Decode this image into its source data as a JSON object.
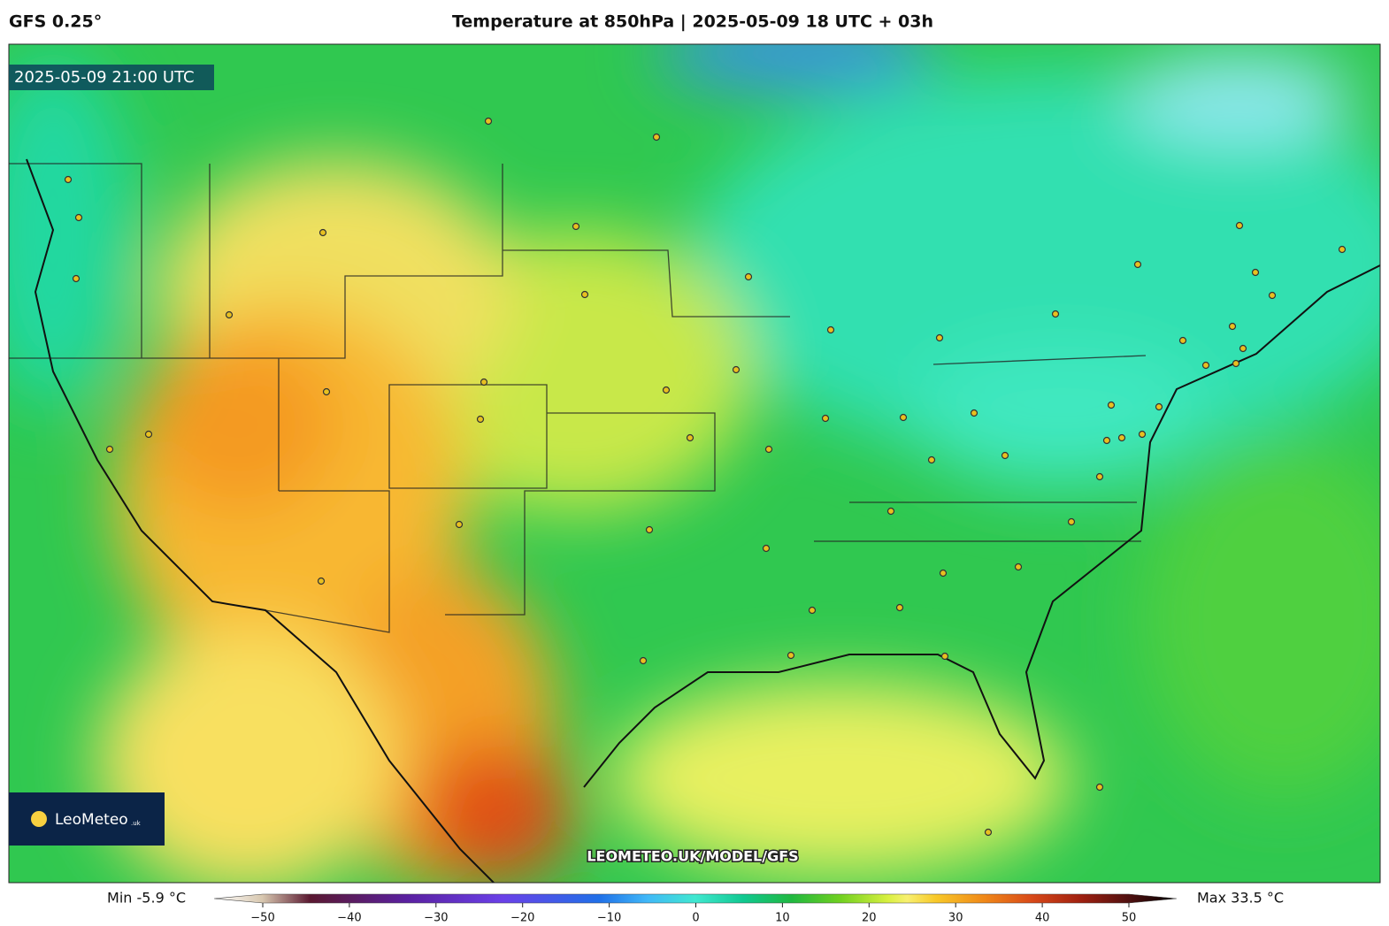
{
  "header": {
    "model": "GFS 0.25°",
    "title": "Temperature at 850hPa | 2025-05-09 18 UTC + 03h"
  },
  "map": {
    "valid_time": "2025-05-09 21:00 UTC",
    "watermark": "LEOMETEO.UK/MODEL/GFS",
    "logo": {
      "name": "LeoMeteo",
      "suffix": ".uk"
    }
  },
  "colorbar": {
    "min_label": "Min -5.9 °C",
    "max_label": "Max 33.5 °C",
    "ticks": [
      {
        "value": -50,
        "label": "−50"
      },
      {
        "value": -40,
        "label": "−40"
      },
      {
        "value": -30,
        "label": "−30"
      },
      {
        "value": -20,
        "label": "−20"
      },
      {
        "value": -10,
        "label": "−10"
      },
      0,
      10,
      20,
      30,
      40,
      50
    ]
  }
}
